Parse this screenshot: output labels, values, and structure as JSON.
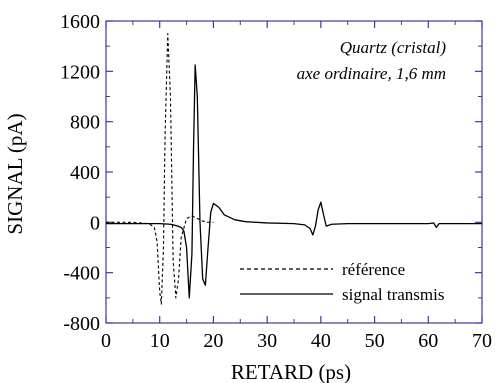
{
  "chart_data": {
    "type": "line",
    "xlabel": "RETARD (ps)",
    "ylabel": "SIGNAL (pA)",
    "xlim": [
      0,
      70
    ],
    "ylim": [
      -800,
      1600
    ],
    "xticks": [
      0,
      10,
      20,
      30,
      40,
      50,
      60,
      70
    ],
    "yticks": [
      -800,
      -400,
      0,
      400,
      800,
      1200,
      1600
    ],
    "grid": false,
    "legend_position": "bottom-right",
    "annotation": [
      "Quartz (cristal)",
      "axe ordinaire, 1,6 mm"
    ],
    "colors": {
      "axis": "#3a3aa0",
      "series": "#000000"
    },
    "series": [
      {
        "name": "référence",
        "style": "dashed",
        "x": [
          0,
          5,
          8,
          9,
          9.5,
          10,
          10.3,
          10.7,
          11,
          11.5,
          12,
          12.5,
          13,
          13.5,
          14,
          15,
          16,
          17,
          18,
          19,
          20
        ],
        "y": [
          0,
          0,
          -10,
          -40,
          -150,
          -550,
          -650,
          -200,
          700,
          1500,
          1000,
          -300,
          -600,
          -450,
          -120,
          30,
          50,
          30,
          10,
          0,
          0
        ]
      },
      {
        "name": "signal transmis",
        "style": "solid",
        "x": [
          0,
          5,
          10,
          12,
          13,
          14,
          14.5,
          15,
          15.5,
          16,
          16.3,
          16.6,
          17,
          17.5,
          18,
          18.5,
          19,
          19.5,
          20,
          21,
          22,
          24,
          26,
          30,
          35,
          37,
          38,
          38.5,
          39,
          39.5,
          40,
          40.5,
          41,
          42,
          45,
          50,
          55,
          60,
          61,
          61.5,
          62,
          63,
          65,
          70
        ],
        "y": [
          -10,
          -10,
          -10,
          -15,
          -25,
          -40,
          -70,
          -200,
          -600,
          -250,
          600,
          1250,
          1000,
          0,
          -450,
          -500,
          -200,
          80,
          150,
          120,
          60,
          20,
          5,
          -5,
          -10,
          -20,
          -50,
          -100,
          -30,
          100,
          160,
          60,
          -30,
          -15,
          -10,
          -10,
          -10,
          -10,
          -5,
          -40,
          -10,
          -10,
          -10,
          -10
        ]
      }
    ]
  }
}
